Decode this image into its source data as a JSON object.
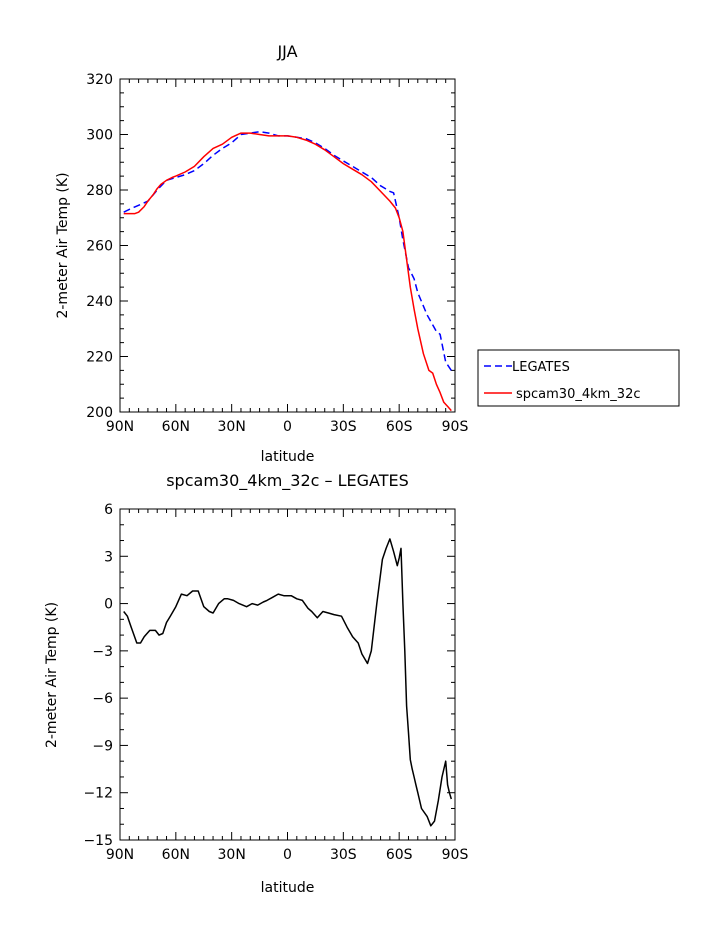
{
  "chart_data": [
    {
      "type": "line",
      "title": "JJA",
      "xlabel": "latitude",
      "ylabel": "2-meter Air Temp (K)",
      "x_tick_labels": [
        "90N",
        "60N",
        "30N",
        "0",
        "30S",
        "60S",
        "90S"
      ],
      "x_note": "latitude in degrees, positive = north, negative = south",
      "xlim": [
        90,
        -90
      ],
      "ylim": [
        200,
        320
      ],
      "y_ticks": [
        "200",
        "220",
        "240",
        "260",
        "280",
        "300",
        "320"
      ],
      "legend_position": "right of plot",
      "series": [
        {
          "name": "LEGATES",
          "color": "#0000ff",
          "dash": "dashed",
          "x": [
            88,
            85,
            80,
            75,
            70,
            65,
            60,
            55,
            50,
            45,
            40,
            35,
            30,
            25,
            20,
            15,
            10,
            5,
            0,
            -5,
            -10,
            -15,
            -20,
            -25,
            -30,
            -35,
            -40,
            -45,
            -50,
            -55,
            -57,
            -60,
            -62,
            -65,
            -68,
            -70,
            -75,
            -80,
            -82,
            -85,
            -88
          ],
          "y": [
            272,
            273,
            274.5,
            276,
            280,
            283.5,
            284.5,
            285.5,
            287,
            289.5,
            292.5,
            295,
            297,
            300,
            300.5,
            301,
            300.5,
            299.5,
            299.5,
            299,
            298.5,
            297,
            295,
            292.5,
            290.5,
            288.5,
            286.5,
            284.5,
            281.5,
            279.5,
            279,
            270,
            262,
            252,
            248,
            243,
            235,
            229,
            228,
            218,
            215
          ]
        },
        {
          "name": "spcam30_4km_32c",
          "color": "#ff0000",
          "dash": "solid",
          "x": [
            88,
            85,
            82,
            80,
            77,
            75,
            72,
            70,
            68,
            65,
            62,
            60,
            55,
            50,
            45,
            40,
            35,
            30,
            25,
            20,
            15,
            10,
            5,
            0,
            -5,
            -10,
            -15,
            -20,
            -25,
            -30,
            -35,
            -40,
            -45,
            -50,
            -55,
            -58,
            -60,
            -62,
            -64,
            -66,
            -68,
            -70,
            -73,
            -76,
            -78,
            -80,
            -82,
            -84,
            -86,
            -88
          ],
          "y": [
            271.5,
            271.5,
            271.5,
            272,
            274,
            276,
            278.5,
            280.5,
            282,
            283.5,
            284.5,
            285,
            286.5,
            288.5,
            292,
            295,
            296.5,
            299,
            300.5,
            300.5,
            300,
            299.5,
            299.5,
            299.5,
            299,
            298,
            296.5,
            294.5,
            292,
            289.5,
            287.5,
            285.5,
            283,
            279.5,
            276,
            273.5,
            270,
            265,
            255,
            245,
            237,
            230,
            221,
            215,
            214,
            210,
            207,
            203.5,
            202,
            200.5
          ]
        }
      ]
    },
    {
      "type": "line",
      "title": "spcam30_4km_32c – LEGATES",
      "xlabel": "latitude",
      "ylabel": "2-meter Air Temp (K)",
      "x_tick_labels": [
        "90N",
        "60N",
        "30N",
        "0",
        "30S",
        "60S",
        "90S"
      ],
      "x_note": "latitude in degrees, positive = north, negative = south",
      "xlim": [
        90,
        -90
      ],
      "ylim": [
        -15,
        6
      ],
      "y_ticks": [
        "-15",
        "-12",
        "-9",
        "-6",
        "-3",
        "0",
        "3",
        "6"
      ],
      "series": [
        {
          "color": "#000000",
          "dash": "solid",
          "x": [
            88,
            86,
            84,
            81,
            79,
            77,
            74,
            71,
            69,
            67,
            65,
            63,
            60,
            57,
            54,
            51,
            48,
            45,
            42,
            40,
            37,
            34,
            32,
            29,
            26,
            22,
            19,
            16,
            13,
            11,
            8,
            5,
            2,
            -2,
            -5,
            -8,
            -11,
            -13,
            -16,
            -19,
            -22,
            -25,
            -29,
            -32,
            -35,
            -38,
            -40,
            -43,
            -45,
            -48,
            -51,
            -53,
            -55,
            -57,
            -59,
            -60,
            -61,
            -62,
            -63,
            -64,
            -65,
            -66,
            -67,
            -68,
            -69,
            -70,
            -72,
            -75,
            -77,
            -79,
            -81,
            -83,
            -85,
            -86,
            -87,
            -88
          ],
          "y": [
            -0.5,
            -0.8,
            -1.5,
            -2.5,
            -2.5,
            -2.1,
            -1.7,
            -1.7,
            -2.0,
            -1.9,
            -1.2,
            -0.8,
            -0.2,
            0.6,
            0.5,
            0.8,
            0.8,
            -0.2,
            -0.5,
            -0.6,
            0.0,
            0.3,
            0.3,
            0.2,
            0.0,
            -0.2,
            0.0,
            -0.1,
            0.1,
            0.2,
            0.4,
            0.6,
            0.5,
            0.5,
            0.3,
            0.2,
            -0.3,
            -0.5,
            -0.9,
            -0.5,
            -0.6,
            -0.7,
            -0.8,
            -1.5,
            -2.1,
            -2.5,
            -3.2,
            -3.8,
            -3.0,
            0.0,
            2.8,
            3.5,
            4.1,
            3.3,
            2.4,
            2.9,
            3.5,
            0.0,
            -3.0,
            -6.5,
            -8.2,
            -9.9,
            -10.5,
            -11.0,
            -11.5,
            -12.0,
            -13.0,
            -13.5,
            -14.1,
            -13.8,
            -12.5,
            -11.0,
            -10.0,
            -11.5,
            -12.0,
            -12.4
          ]
        }
      ]
    }
  ]
}
